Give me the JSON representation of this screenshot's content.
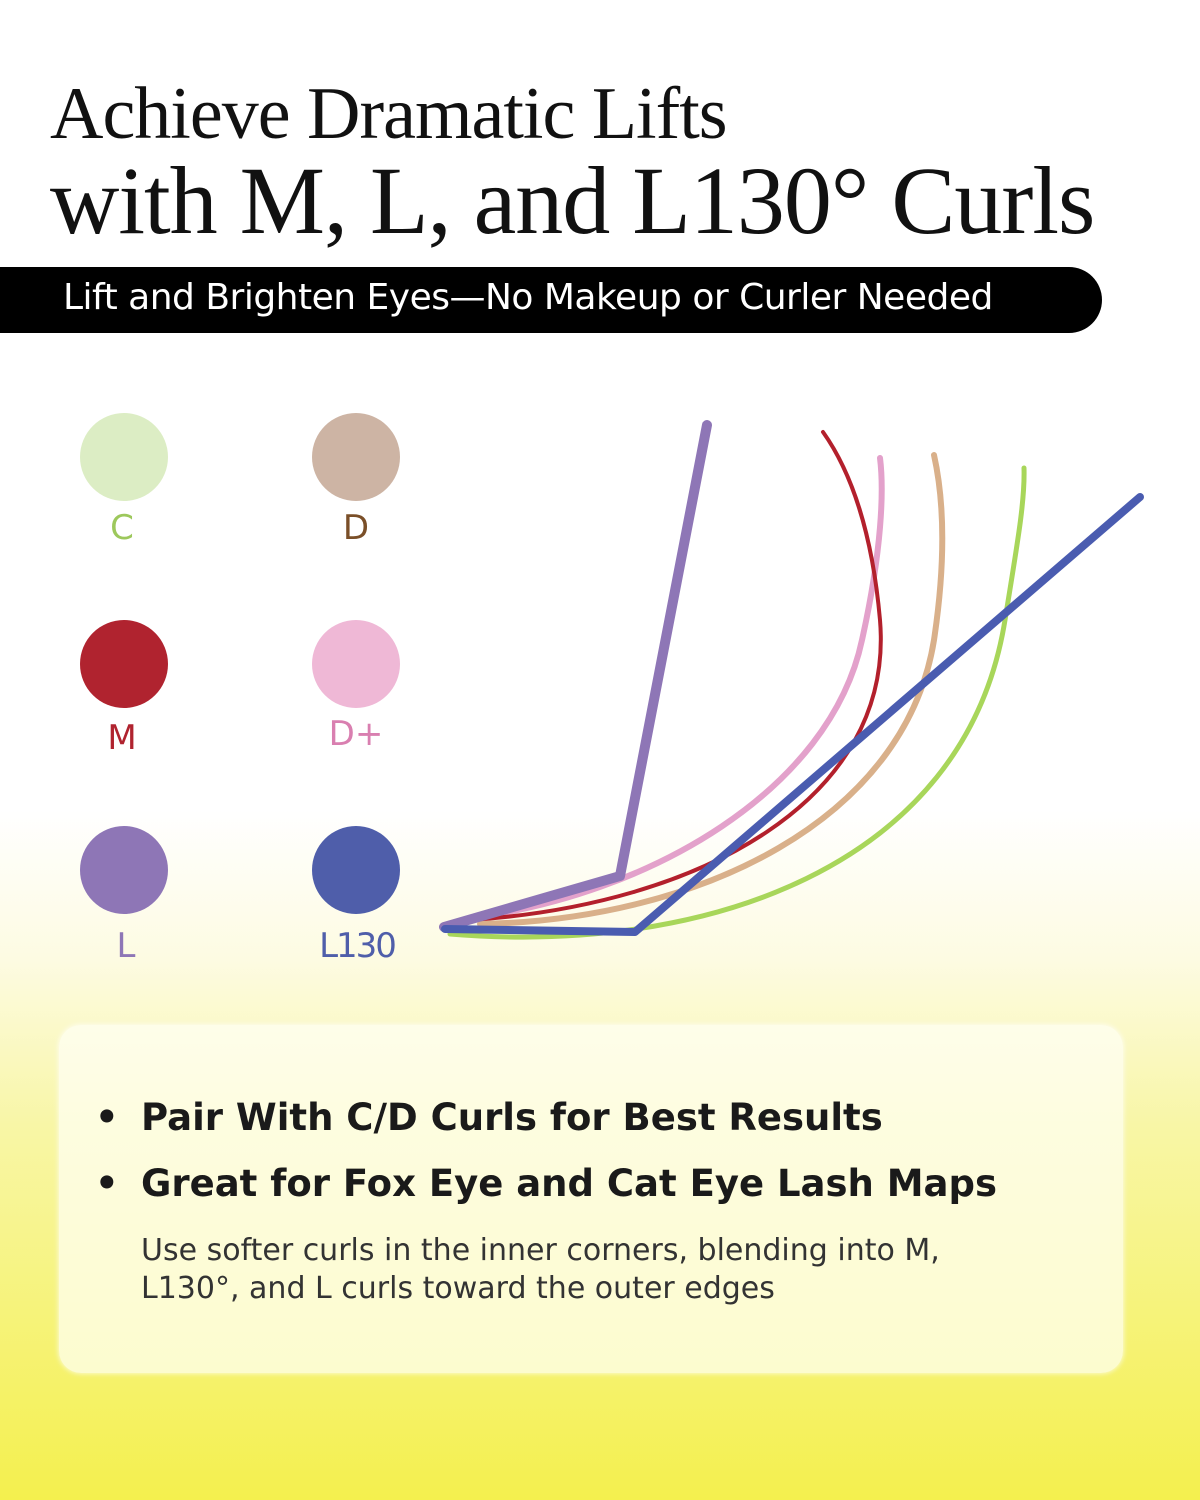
{
  "title": {
    "line1": "Achieve Dramatic Lifts",
    "line2": "with M, L, and L130° Curls"
  },
  "banner": "Lift and Brighten Eyes—No Makeup or Curler Needed",
  "legend": [
    {
      "label": "C",
      "swatch": "#dcedc4",
      "text_color": "#9dc85c"
    },
    {
      "label": "D",
      "swatch": "#cdb4a4",
      "text_color": "#7a4f28"
    },
    {
      "label": "M",
      "swatch": "#b0232f",
      "text_color": "#b0232f"
    },
    {
      "label": "D+",
      "swatch": "#efb8d6",
      "text_color": "#d97fb0"
    },
    {
      "label": "L",
      "swatch": "#8e76b6",
      "text_color": "#8e76b6"
    },
    {
      "label": "L130",
      "swatch": "#4f5eaa",
      "text_color": "#4f5eaa"
    }
  ],
  "curves": {
    "C": "#a8d65a",
    "D": "#d9b08a",
    "D+": "#e3a1cb",
    "M": "#b3202c",
    "L": "#8e76b6",
    "L130": "#4a5cb0"
  },
  "card": {
    "bullets": [
      "Pair With C/D Curls for Best Results",
      "Great for Fox Eye and Cat Eye Lash Maps"
    ],
    "bullet_symbol": "•",
    "note": "Use softer curls in the inner corners, blending into M, L130°, and L curls toward the outer edges"
  }
}
